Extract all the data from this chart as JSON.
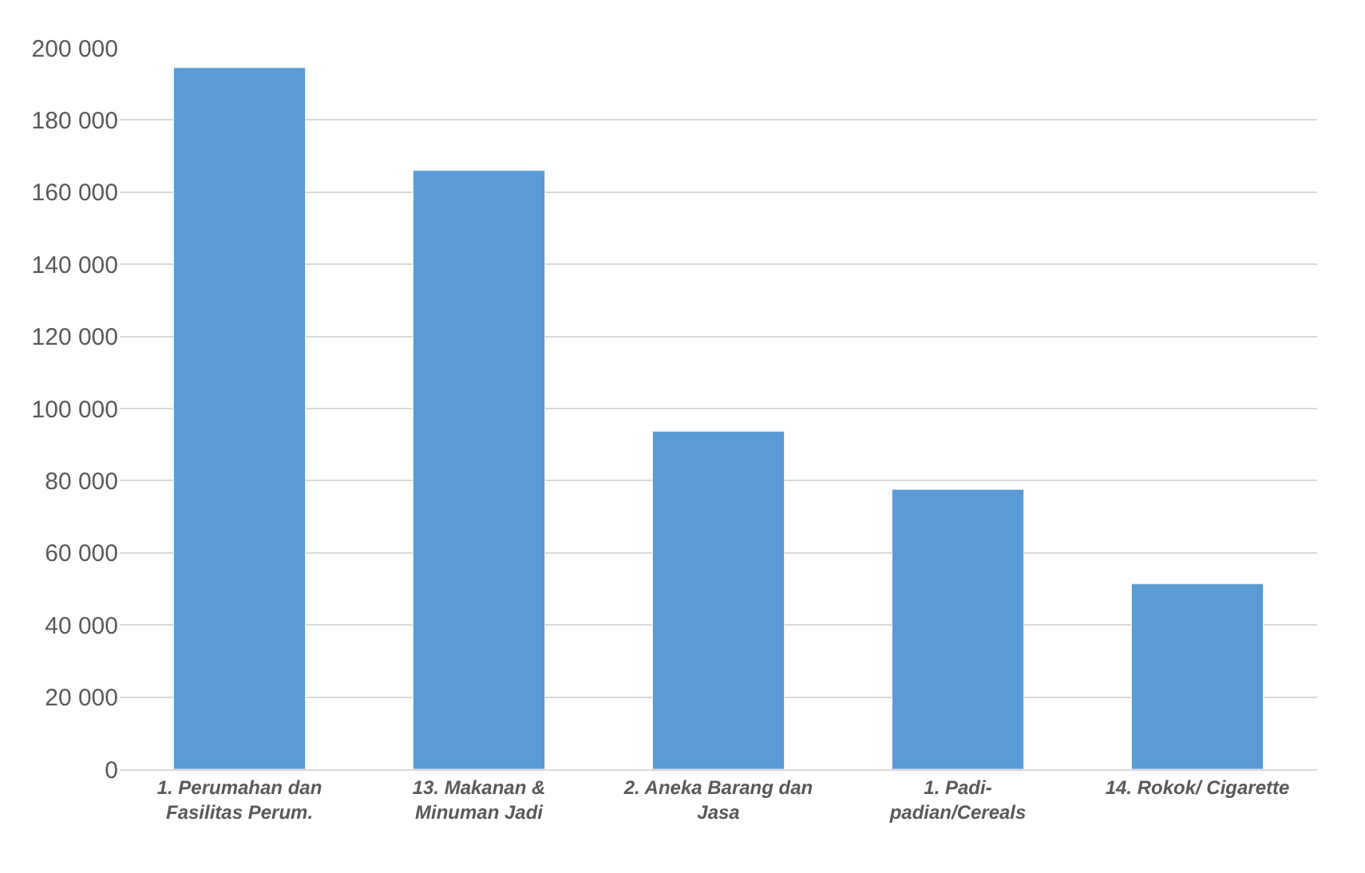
{
  "chart_data": {
    "type": "bar",
    "categories": [
      "1. Perumahan dan Fasilitas Perum.",
      "13. Makanan & Minuman Jadi",
      "2. Aneka Barang dan Jasa",
      "1. Padi-padian/Cereals",
      "14. Rokok/ Cigarette"
    ],
    "values": [
      194500,
      166000,
      93700,
      77600,
      51400
    ],
    "color": "#5b9bd5",
    "ylim": [
      0,
      200000
    ],
    "yticks": [
      {
        "value": 0,
        "label": "0"
      },
      {
        "value": 20000,
        "label": "20 000"
      },
      {
        "value": 40000,
        "label": "40 000"
      },
      {
        "value": 60000,
        "label": "60 000"
      },
      {
        "value": 80000,
        "label": "80 000"
      },
      {
        "value": 100000,
        "label": "100 000"
      },
      {
        "value": 120000,
        "label": "120 000"
      },
      {
        "value": 140000,
        "label": "140 000"
      },
      {
        "value": 160000,
        "label": "160 000"
      },
      {
        "value": 180000,
        "label": "180 000"
      },
      {
        "value": 200000,
        "label": "200 000"
      }
    ],
    "grid": "y"
  }
}
